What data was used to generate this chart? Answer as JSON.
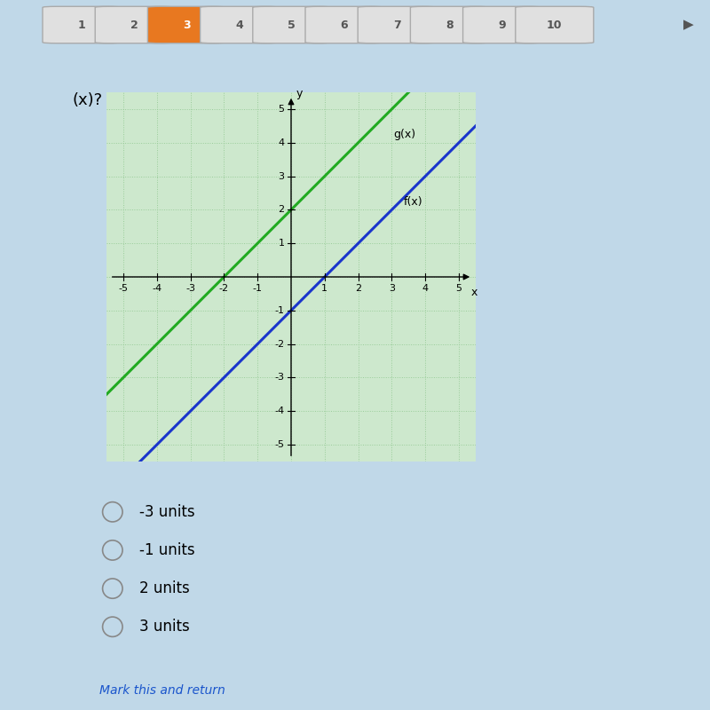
{
  "title_text": "(x)?",
  "g_label": "g(x)",
  "f_label": "f(x)",
  "g_color": "#22aa22",
  "f_color": "#1a35cc",
  "g_slope": 1,
  "g_intercept": 2,
  "f_slope": 1,
  "f_intercept": -1,
  "xlim": [
    -5.5,
    5.5
  ],
  "ylim": [
    -5.5,
    5.5
  ],
  "xticks": [
    -5,
    -4,
    -3,
    -2,
    -1,
    1,
    2,
    3,
    4,
    5
  ],
  "yticks": [
    -5,
    -4,
    -3,
    -2,
    -1,
    1,
    2,
    3,
    4,
    5
  ],
  "xlabel": "x",
  "ylabel": "y",
  "graph_bg": "#cde8cd",
  "grid_color": "#99cc99",
  "page_bg": "#c0d8e8",
  "nav_bg": "#d8d8d8",
  "nav_buttons": [
    "1",
    "2",
    "3",
    "4",
    "5",
    "6",
    "7",
    "8",
    "9",
    "10"
  ],
  "active_button": "3",
  "active_color": "#e87820",
  "inactive_color": "#e0e0e0",
  "answer_options": [
    "-3 units",
    "-1 units",
    "2 units",
    "3 units"
  ],
  "mark_return_text": "Mark this and return",
  "mark_return_color": "#1a55cc"
}
